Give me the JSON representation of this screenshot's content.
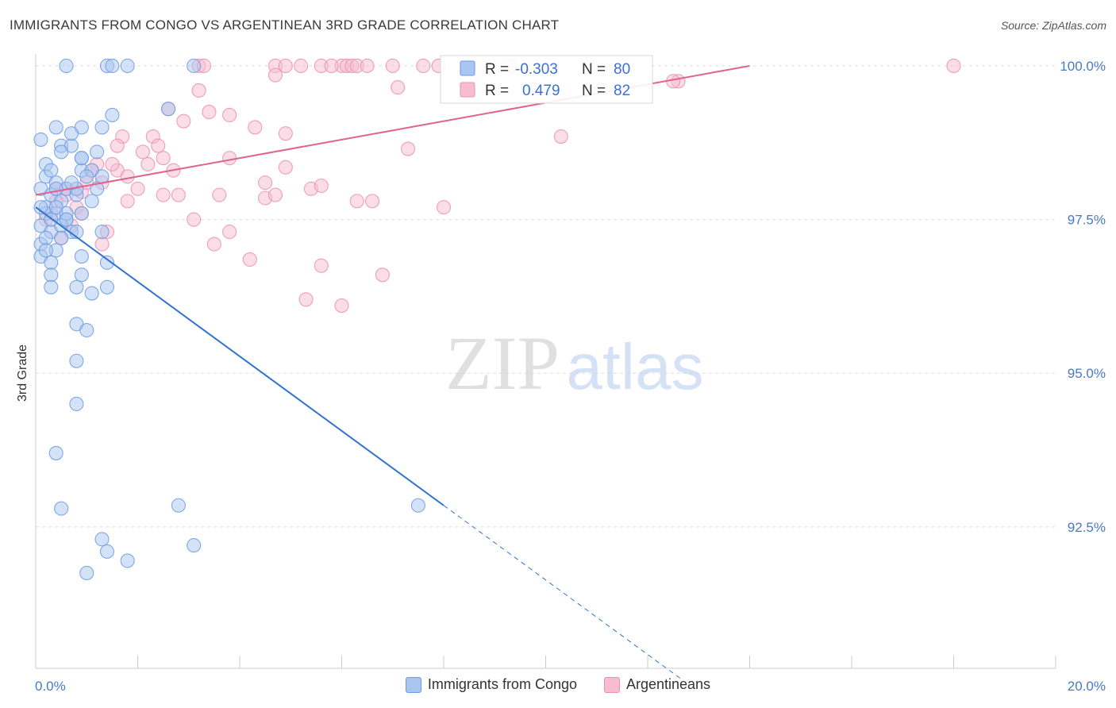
{
  "header": {
    "title": "IMMIGRANTS FROM CONGO VS ARGENTINEAN 3RD GRADE CORRELATION CHART",
    "source": "Source: ZipAtlas.com"
  },
  "watermark": {
    "zip": "ZIP",
    "atlas": "atlas"
  },
  "stats_legend": [
    {
      "r_label": "R =",
      "r_value": "-0.303",
      "n_label": "N =",
      "n_value": "80"
    },
    {
      "r_label": "R =",
      "r_value": "0.479",
      "n_label": "N =",
      "n_value": "82"
    }
  ],
  "bottom_legend": [
    {
      "label": "Immigrants from Congo"
    },
    {
      "label": "Argentineans"
    }
  ],
  "colors": {
    "congo_fill": "#a9c6f2",
    "congo_stroke": "#6c9be0",
    "congo_line": "#2f74d0",
    "arg_fill": "#f7bcd0",
    "arg_stroke": "#ec8fb0",
    "arg_line": "#e0628e",
    "grid": "#dddddd",
    "tick_text": "#4a78c8"
  },
  "chart_data": {
    "type": "scatter",
    "title": "IMMIGRANTS FROM CONGO VS ARGENTINEAN 3RD GRADE CORRELATION CHART",
    "xlabel": "",
    "ylabel": "3rd Grade",
    "xlim": [
      0,
      20
    ],
    "ylim": [
      90.2,
      100.4
    ],
    "x_tick_labels": [
      "0.0%",
      "20.0%"
    ],
    "y_ticks": [
      100.0,
      97.5,
      95.0,
      92.5
    ],
    "y_tick_labels": [
      "100.0%",
      "97.5%",
      "95.0%",
      "92.5%"
    ],
    "grid": true,
    "legend_position": "bottom-center",
    "series": [
      {
        "name": "Immigrants from Congo",
        "r": -0.303,
        "n": 80,
        "trend": {
          "x": [
            0.0,
            8.0
          ],
          "y": [
            97.7,
            92.85
          ],
          "dashed_to": [
            12.7,
            90.0
          ]
        },
        "points": [
          [
            0.6,
            100
          ],
          [
            1.4,
            100
          ],
          [
            1.8,
            100
          ],
          [
            3.1,
            100
          ],
          [
            1.5,
            100
          ],
          [
            0.1,
            98.8
          ],
          [
            0.4,
            99.0
          ],
          [
            0.9,
            99.0
          ],
          [
            0.5,
            98.7
          ],
          [
            0.7,
            98.7
          ],
          [
            0.9,
            98.5
          ],
          [
            1.5,
            99.2
          ],
          [
            0.2,
            98.4
          ],
          [
            0.2,
            98.2
          ],
          [
            0.4,
            98.1
          ],
          [
            0.6,
            98.0
          ],
          [
            0.9,
            98.3
          ],
          [
            1.1,
            98.3
          ],
          [
            1.3,
            98.2
          ],
          [
            0.1,
            98.0
          ],
          [
            0.3,
            97.9
          ],
          [
            0.5,
            97.8
          ],
          [
            0.8,
            97.9
          ],
          [
            0.2,
            97.7
          ],
          [
            0.4,
            97.6
          ],
          [
            0.6,
            97.5
          ],
          [
            0.9,
            97.6
          ],
          [
            0.1,
            97.4
          ],
          [
            0.3,
            97.3
          ],
          [
            0.5,
            97.4
          ],
          [
            0.7,
            97.3
          ],
          [
            0.1,
            97.1
          ],
          [
            0.4,
            97.0
          ],
          [
            0.1,
            96.9
          ],
          [
            0.3,
            96.8
          ],
          [
            0.9,
            96.9
          ],
          [
            1.4,
            96.8
          ],
          [
            0.3,
            96.6
          ],
          [
            0.9,
            96.6
          ],
          [
            0.8,
            96.4
          ],
          [
            1.4,
            96.4
          ],
          [
            0.3,
            96.4
          ],
          [
            1.1,
            96.3
          ],
          [
            0.8,
            95.8
          ],
          [
            1.0,
            95.7
          ],
          [
            0.8,
            95.2
          ],
          [
            0.8,
            94.5
          ],
          [
            0.4,
            93.7
          ],
          [
            0.5,
            92.8
          ],
          [
            2.8,
            92.85
          ],
          [
            7.5,
            92.85
          ],
          [
            1.3,
            92.3
          ],
          [
            1.4,
            92.1
          ],
          [
            1.8,
            91.95
          ],
          [
            3.1,
            92.2
          ],
          [
            1.0,
            91.75
          ],
          [
            2.6,
            99.3
          ],
          [
            1.3,
            99.0
          ],
          [
            0.2,
            97.2
          ],
          [
            0.6,
            97.6
          ],
          [
            1.3,
            97.3
          ],
          [
            0.4,
            98.0
          ],
          [
            0.8,
            98.0
          ],
          [
            1.1,
            97.8
          ],
          [
            0.2,
            97.6
          ],
          [
            0.5,
            97.2
          ],
          [
            0.7,
            98.9
          ],
          [
            1.2,
            98.0
          ],
          [
            0.3,
            97.5
          ],
          [
            0.9,
            98.5
          ],
          [
            0.4,
            97.7
          ],
          [
            0.7,
            98.1
          ],
          [
            0.1,
            97.7
          ],
          [
            0.3,
            98.3
          ],
          [
            0.6,
            97.5
          ],
          [
            1.0,
            98.2
          ],
          [
            0.2,
            97.0
          ],
          [
            0.5,
            98.6
          ],
          [
            0.8,
            97.3
          ],
          [
            1.2,
            98.6
          ]
        ]
      },
      {
        "name": "Argentineans",
        "r": 0.479,
        "n": 82,
        "trend": {
          "x": [
            0.0,
            14.0
          ],
          "y": [
            97.9,
            100.0
          ]
        },
        "points": [
          [
            3.2,
            100
          ],
          [
            4.7,
            100
          ],
          [
            4.9,
            100
          ],
          [
            5.2,
            100
          ],
          [
            5.6,
            100
          ],
          [
            6.0,
            100
          ],
          [
            6.1,
            100
          ],
          [
            6.2,
            100
          ],
          [
            6.3,
            100
          ],
          [
            6.5,
            100
          ],
          [
            7.0,
            100
          ],
          [
            7.6,
            100
          ],
          [
            8.5,
            100
          ],
          [
            9.3,
            100
          ],
          [
            18.0,
            100
          ],
          [
            3.3,
            100
          ],
          [
            5.8,
            100
          ],
          [
            7.9,
            100
          ],
          [
            12.6,
            99.75
          ],
          [
            12.5,
            99.75
          ],
          [
            4.7,
            99.85
          ],
          [
            7.1,
            99.65
          ],
          [
            3.2,
            99.6
          ],
          [
            2.6,
            99.3
          ],
          [
            3.4,
            99.25
          ],
          [
            3.8,
            99.2
          ],
          [
            4.3,
            99.0
          ],
          [
            2.9,
            99.1
          ],
          [
            1.7,
            98.85
          ],
          [
            2.3,
            98.85
          ],
          [
            4.9,
            98.9
          ],
          [
            10.3,
            98.85
          ],
          [
            1.6,
            98.7
          ],
          [
            2.1,
            98.6
          ],
          [
            2.4,
            98.7
          ],
          [
            7.3,
            98.65
          ],
          [
            1.2,
            98.4
          ],
          [
            2.5,
            98.5
          ],
          [
            3.8,
            98.5
          ],
          [
            1.6,
            98.3
          ],
          [
            2.2,
            98.4
          ],
          [
            2.7,
            98.3
          ],
          [
            4.9,
            98.35
          ],
          [
            1.3,
            98.1
          ],
          [
            2.0,
            98.0
          ],
          [
            1.8,
            98.2
          ],
          [
            4.5,
            98.1
          ],
          [
            5.4,
            98.0
          ],
          [
            5.6,
            98.05
          ],
          [
            0.4,
            98.0
          ],
          [
            0.9,
            97.95
          ],
          [
            2.5,
            97.9
          ],
          [
            2.8,
            97.9
          ],
          [
            3.6,
            97.9
          ],
          [
            4.5,
            97.85
          ],
          [
            4.7,
            97.9
          ],
          [
            6.3,
            97.8
          ],
          [
            6.6,
            97.8
          ],
          [
            8.0,
            97.7
          ],
          [
            1.8,
            97.8
          ],
          [
            0.6,
            97.9
          ],
          [
            3.1,
            97.5
          ],
          [
            3.8,
            97.3
          ],
          [
            1.4,
            97.3
          ],
          [
            1.3,
            97.1
          ],
          [
            3.5,
            97.1
          ],
          [
            4.2,
            96.85
          ],
          [
            5.6,
            96.75
          ],
          [
            6.8,
            96.6
          ],
          [
            5.3,
            96.2
          ],
          [
            6.0,
            96.1
          ],
          [
            0.3,
            97.6
          ],
          [
            0.5,
            97.2
          ],
          [
            0.8,
            97.7
          ],
          [
            1.0,
            98.1
          ],
          [
            0.2,
            97.5
          ],
          [
            0.7,
            97.4
          ],
          [
            1.1,
            98.3
          ],
          [
            0.4,
            97.8
          ],
          [
            0.6,
            98.0
          ],
          [
            1.5,
            98.4
          ],
          [
            0.9,
            97.6
          ]
        ]
      }
    ]
  }
}
